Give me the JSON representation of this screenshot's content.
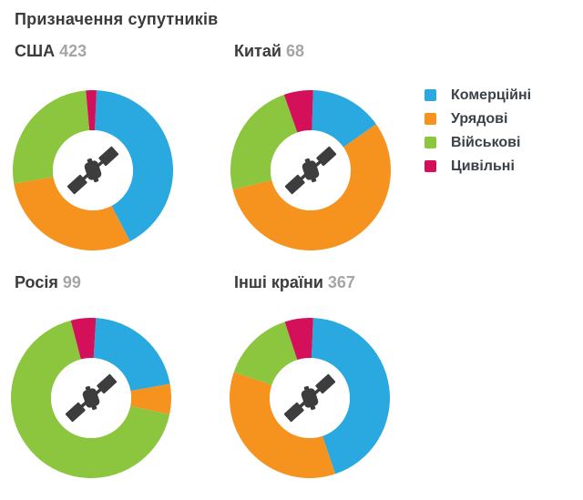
{
  "page": {
    "title": "Призначення супутників",
    "background": "#FFFFFF"
  },
  "colors": {
    "icon_dark": "#3D3D3D",
    "heading_text": "#3B3B3B",
    "count_text": "#A5A5A5",
    "commercial": "#29A9E0",
    "government": "#F6921E",
    "military": "#8CC63F",
    "civil": "#D4105A"
  },
  "legend": {
    "items": [
      {
        "key": "commercial",
        "label": "Комерційні",
        "color": "#29A9E0"
      },
      {
        "key": "government",
        "label": "Урядові",
        "color": "#F6921E"
      },
      {
        "key": "military",
        "label": "Військові",
        "color": "#8CC63F"
      },
      {
        "key": "civil",
        "label": "Цивільні",
        "color": "#D4105A"
      }
    ]
  },
  "chart_data": [
    {
      "type": "pie",
      "style": "donut",
      "hole_ratio": 0.5,
      "title": "США",
      "total": "423",
      "categories": [
        "Комерційні",
        "Урядові",
        "Військові",
        "Цивільні"
      ],
      "segment_keys": [
        "commercial",
        "government",
        "military",
        "civil"
      ],
      "values": [
        176,
        127,
        111,
        9
      ],
      "values_estimated_from_angles": true,
      "colors": [
        "#29A9E0",
        "#F6921E",
        "#8CC63F",
        "#D4105A"
      ],
      "start_angle_deg": 2.6,
      "center_icon": "satellite-icon",
      "legend_position": "right"
    },
    {
      "type": "pie",
      "style": "donut",
      "hole_ratio": 0.5,
      "title": "Китай",
      "total": "68",
      "categories": [
        "Комерційні",
        "Урядові",
        "Військові",
        "Цивільні"
      ],
      "segment_keys": [
        "commercial",
        "government",
        "military",
        "civil"
      ],
      "values": [
        10,
        38,
        16,
        4
      ],
      "values_estimated_from_angles": true,
      "colors": [
        "#29A9E0",
        "#F6921E",
        "#8CC63F",
        "#D4105A"
      ],
      "start_angle_deg": 1.8,
      "center_icon": "satellite-icon",
      "legend_position": "right"
    },
    {
      "type": "pie",
      "style": "donut",
      "hole_ratio": 0.5,
      "title": "Росія",
      "total": "99",
      "categories": [
        "Комерційні",
        "Урядові",
        "Військові",
        "Цивільні"
      ],
      "segment_keys": [
        "commercial",
        "government",
        "military",
        "civil"
      ],
      "values": [
        21,
        6,
        67,
        5
      ],
      "values_estimated_from_angles": true,
      "colors": [
        "#29A9E0",
        "#F6921E",
        "#8CC63F",
        "#D4105A"
      ],
      "start_angle_deg": 3.5,
      "center_icon": "satellite-icon",
      "legend_position": "right"
    },
    {
      "type": "pie",
      "style": "donut",
      "hole_ratio": 0.5,
      "title": "Інші країни",
      "total": "367",
      "categories": [
        "Комерційні",
        "Урядові",
        "Військові",
        "Цивільні"
      ],
      "segment_keys": [
        "commercial",
        "government",
        "military",
        "civil"
      ],
      "values": [
        162,
        130,
        54,
        21
      ],
      "values_estimated_from_angles": true,
      "colors": [
        "#29A9E0",
        "#F6921E",
        "#8CC63F",
        "#D4105A"
      ],
      "start_angle_deg": 2.5,
      "center_icon": "satellite-icon",
      "legend_position": "right"
    }
  ]
}
